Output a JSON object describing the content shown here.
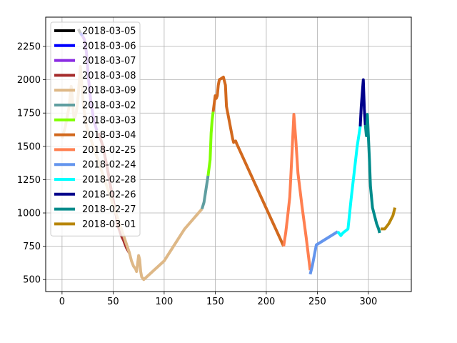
{
  "chart_data": {
    "type": "line",
    "title": "",
    "xlabel": "",
    "ylabel": "",
    "xlim": [
      -16,
      342
    ],
    "ylim": [
      410,
      2470
    ],
    "xticks": [
      0,
      50,
      100,
      150,
      200,
      250,
      300
    ],
    "yticks": [
      500,
      750,
      1000,
      1250,
      1500,
      1750,
      2000,
      2250
    ],
    "grid": true,
    "legend_position": "top-left",
    "series": [
      {
        "name": "2018-03-05",
        "color": "#000000",
        "points": [
          [
            16,
            2380
          ],
          [
            18,
            2350
          ]
        ]
      },
      {
        "name": "2018-03-06",
        "color": "#0000ff",
        "points": [
          [
            18,
            2350
          ],
          [
            20,
            2330
          ]
        ]
      },
      {
        "name": "2018-03-07",
        "color": "#8a2be2",
        "points": [
          [
            20,
            2330
          ],
          [
            22,
            2300
          ],
          [
            24,
            2200
          ],
          [
            26,
            2000
          ],
          [
            28,
            1850
          ],
          [
            31,
            1700
          ],
          [
            34,
            1620
          ]
        ]
      },
      {
        "name": "2018-03-08",
        "color": "#a52a2a",
        "points": [
          [
            36,
            1600
          ],
          [
            40,
            1500
          ],
          [
            44,
            1350
          ],
          [
            48,
            1180
          ],
          [
            52,
            1020
          ],
          [
            55,
            900
          ],
          [
            58,
            830
          ],
          [
            60,
            800
          ],
          [
            63,
            740
          ],
          [
            66,
            700
          ]
        ]
      },
      {
        "name": "2018-03-09",
        "color": "#deb887",
        "points": [
          [
            0,
            1560
          ],
          [
            3,
            1640
          ],
          [
            5,
            1720
          ],
          [
            7,
            1800
          ],
          [
            8,
            1880
          ],
          [
            9,
            1950
          ],
          [
            10,
            1870
          ],
          [
            11,
            1760
          ],
          [
            12,
            1700
          ],
          [
            14,
            1760
          ],
          [
            15,
            1820
          ],
          [
            16,
            1900
          ],
          [
            17,
            2000
          ],
          [
            18,
            2100
          ],
          [
            19,
            2000
          ],
          [
            20,
            1900
          ],
          [
            21,
            1800
          ],
          [
            22,
            1750
          ],
          [
            23,
            1700
          ],
          [
            24,
            1650
          ],
          [
            66,
            700
          ],
          [
            68,
            640
          ],
          [
            70,
            600
          ],
          [
            72,
            580
          ],
          [
            73,
            560
          ],
          [
            74,
            620
          ],
          [
            75,
            680
          ],
          [
            76,
            650
          ],
          [
            77,
            560
          ],
          [
            78,
            520
          ],
          [
            80,
            500
          ],
          [
            100,
            640
          ],
          [
            120,
            880
          ],
          [
            137,
            1030
          ]
        ]
      },
      {
        "name": "2018-03-02",
        "color": "#5f9ea0",
        "points": [
          [
            137,
            1030
          ],
          [
            139,
            1080
          ],
          [
            141,
            1180
          ],
          [
            143,
            1280
          ]
        ]
      },
      {
        "name": "2018-03-03",
        "color": "#7fff00",
        "points": [
          [
            143,
            1280
          ],
          [
            145,
            1400
          ],
          [
            146,
            1600
          ],
          [
            147,
            1700
          ],
          [
            148,
            1760
          ]
        ]
      },
      {
        "name": "2018-03-04",
        "color": "#d2691e",
        "points": [
          [
            148,
            1760
          ],
          [
            149,
            1820
          ],
          [
            150,
            1880
          ],
          [
            151,
            1860
          ],
          [
            152,
            1880
          ],
          [
            153,
            1960
          ],
          [
            154,
            2000
          ],
          [
            156,
            2010
          ],
          [
            158,
            2020
          ],
          [
            160,
            1960
          ],
          [
            161,
            1800
          ],
          [
            163,
            1720
          ],
          [
            165,
            1640
          ],
          [
            167,
            1560
          ],
          [
            168,
            1530
          ],
          [
            170,
            1540
          ],
          [
            171,
            1520
          ],
          [
            217,
            750
          ]
        ]
      },
      {
        "name": "2018-02-25",
        "color": "#ff7f50",
        "points": [
          [
            217,
            750
          ],
          [
            219,
            850
          ],
          [
            221,
            980
          ],
          [
            223,
            1120
          ],
          [
            225,
            1420
          ],
          [
            227,
            1740
          ],
          [
            229,
            1540
          ],
          [
            231,
            1300
          ],
          [
            235,
            1050
          ],
          [
            239,
            820
          ],
          [
            243,
            570
          ]
        ]
      },
      {
        "name": "2018-02-24",
        "color": "#6495ed",
        "points": [
          [
            243,
            540
          ],
          [
            245,
            600
          ],
          [
            247,
            680
          ],
          [
            249,
            760
          ],
          [
            270,
            860
          ]
        ]
      },
      {
        "name": "2018-02-28",
        "color": "#00ffff",
        "points": [
          [
            270,
            860
          ],
          [
            273,
            830
          ],
          [
            275,
            850
          ],
          [
            280,
            880
          ],
          [
            283,
            1100
          ],
          [
            286,
            1300
          ],
          [
            289,
            1500
          ],
          [
            292,
            1650
          ]
        ]
      },
      {
        "name": "2018-02-26",
        "color": "#00008b",
        "points": [
          [
            292,
            1650
          ],
          [
            293,
            1800
          ],
          [
            294,
            1900
          ],
          [
            295,
            2000
          ],
          [
            296,
            1780
          ],
          [
            297,
            1660
          ]
        ]
      },
      {
        "name": "2018-02-27",
        "color": "#008b8b",
        "points": [
          [
            297,
            1660
          ],
          [
            298,
            1580
          ],
          [
            299,
            1740
          ],
          [
            301,
            1400
          ],
          [
            302,
            1200
          ],
          [
            304,
            1040
          ],
          [
            306,
            980
          ],
          [
            308,
            920
          ],
          [
            310,
            880
          ],
          [
            311,
            850
          ]
        ]
      },
      {
        "name": "2018-03-01",
        "color": "#b8860b",
        "points": [
          [
            312,
            880
          ],
          [
            316,
            880
          ],
          [
            320,
            920
          ],
          [
            324,
            980
          ],
          [
            326,
            1040
          ]
        ]
      }
    ]
  }
}
